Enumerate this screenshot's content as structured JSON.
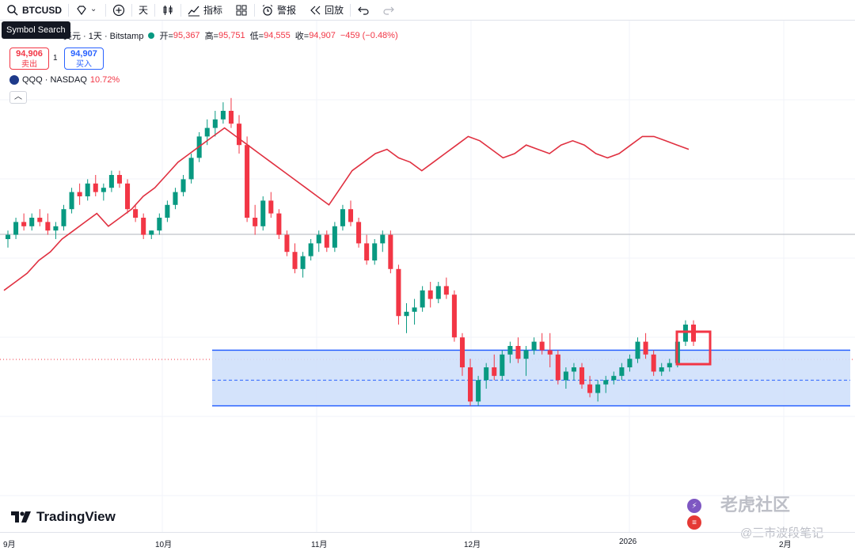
{
  "toolbar": {
    "symbol": "BTCUSD",
    "interval": "天",
    "indicators": "指标",
    "alert": "警报",
    "replay": "回放"
  },
  "tooltip": "Symbol Search",
  "legend": {
    "title": "美元 · 1天 · Bitstamp",
    "open_label": "开=",
    "open": "95,367",
    "high_label": "高=",
    "high": "95,751",
    "low_label": "低=",
    "low": "94,555",
    "close_label": "收=",
    "close": "94,907",
    "change": "−459 (−0.48%)"
  },
  "trade": {
    "sell_price": "94,906",
    "sell_label": "卖出",
    "spread": "1",
    "buy_price": "94,907",
    "buy_label": "买入"
  },
  "compare": {
    "symbol": "QQQ · NASDAQ",
    "value": "10.72%"
  },
  "xaxis": [
    "9月",
    "10月",
    "11月",
    "12月",
    "2026",
    "2月"
  ],
  "branding": {
    "logo": "TradingView",
    "watermark_main": "老虎社区",
    "watermark_sub": "@三市波段笔记"
  },
  "colors": {
    "up": "#089981",
    "down": "#f23645",
    "qqq_line": "#e03040",
    "range_fill": "#cfe0fb",
    "range_border": "#2962ff"
  },
  "chart_data": {
    "type": "candlestick",
    "note": "BTCUSD daily candles from Sept to late Jan; relative price units (0=low,100=high of visible range)",
    "candles": [
      [
        60,
        62,
        58,
        61
      ],
      [
        61,
        65,
        60,
        64
      ],
      [
        64,
        66,
        62,
        63
      ],
      [
        63,
        66,
        62,
        65
      ],
      [
        65,
        67,
        63,
        64
      ],
      [
        64,
        66,
        61,
        62
      ],
      [
        62,
        64,
        60,
        63
      ],
      [
        63,
        68,
        62,
        67
      ],
      [
        67,
        72,
        66,
        71
      ],
      [
        71,
        73,
        68,
        70
      ],
      [
        70,
        74,
        69,
        73
      ],
      [
        73,
        75,
        70,
        71
      ],
      [
        71,
        73,
        69,
        72
      ],
      [
        72,
        76,
        71,
        75
      ],
      [
        75,
        76,
        72,
        73
      ],
      [
        73,
        74,
        66,
        67
      ],
      [
        67,
        68,
        64,
        65
      ],
      [
        65,
        66,
        60,
        61
      ],
      [
        61,
        62,
        60,
        62
      ],
      [
        62,
        66,
        61,
        65
      ],
      [
        65,
        69,
        64,
        68
      ],
      [
        68,
        72,
        67,
        71
      ],
      [
        71,
        75,
        70,
        74
      ],
      [
        74,
        80,
        73,
        79
      ],
      [
        79,
        85,
        78,
        84
      ],
      [
        84,
        88,
        82,
        86
      ],
      [
        86,
        90,
        84,
        88
      ],
      [
        88,
        92,
        87,
        90
      ],
      [
        90,
        93,
        86,
        87
      ],
      [
        87,
        89,
        80,
        82
      ],
      [
        82,
        84,
        64,
        65
      ],
      [
        65,
        68,
        61,
        63
      ],
      [
        63,
        70,
        62,
        69
      ],
      [
        69,
        71,
        65,
        66
      ],
      [
        66,
        67,
        60,
        61
      ],
      [
        61,
        62,
        56,
        57
      ],
      [
        57,
        59,
        52,
        53
      ],
      [
        53,
        57,
        51,
        56
      ],
      [
        56,
        60,
        55,
        59
      ],
      [
        59,
        62,
        57,
        61
      ],
      [
        61,
        62,
        57,
        58
      ],
      [
        58,
        64,
        57,
        63
      ],
      [
        63,
        68,
        62,
        67
      ],
      [
        67,
        69,
        63,
        64
      ],
      [
        64,
        65,
        58,
        59
      ],
      [
        59,
        61,
        54,
        55
      ],
      [
        55,
        60,
        54,
        59
      ],
      [
        59,
        62,
        57,
        61
      ],
      [
        61,
        62,
        52,
        53
      ],
      [
        53,
        54,
        40,
        42
      ],
      [
        42,
        45,
        38,
        43
      ],
      [
        43,
        46,
        40,
        44
      ],
      [
        44,
        49,
        43,
        48
      ],
      [
        48,
        50,
        44,
        46
      ],
      [
        46,
        50,
        45,
        49
      ],
      [
        49,
        51,
        46,
        47
      ],
      [
        47,
        48,
        36,
        37
      ],
      [
        37,
        38,
        28,
        30
      ],
      [
        30,
        32,
        21,
        22
      ],
      [
        22,
        28,
        21,
        27
      ],
      [
        27,
        31,
        25,
        30
      ],
      [
        30,
        33,
        27,
        28
      ],
      [
        28,
        34,
        27,
        33
      ],
      [
        33,
        36,
        31,
        35
      ],
      [
        35,
        37,
        31,
        32
      ],
      [
        32,
        35,
        28,
        34
      ],
      [
        34,
        37,
        33,
        36
      ],
      [
        36,
        38,
        33,
        34
      ],
      [
        34,
        38,
        30,
        33
      ],
      [
        33,
        34,
        26,
        27
      ],
      [
        27,
        30,
        25,
        29
      ],
      [
        29,
        31,
        27,
        30
      ],
      [
        30,
        31,
        25,
        26
      ],
      [
        26,
        28,
        23,
        24
      ],
      [
        24,
        27,
        22,
        26
      ],
      [
        26,
        28,
        24,
        27
      ],
      [
        27,
        29,
        26,
        28
      ],
      [
        28,
        31,
        27,
        30
      ],
      [
        30,
        33,
        29,
        32
      ],
      [
        32,
        37,
        31,
        36
      ],
      [
        36,
        38,
        32,
        33
      ],
      [
        33,
        34,
        28,
        29
      ],
      [
        29,
        31,
        28,
        30
      ],
      [
        30,
        32,
        29,
        31
      ],
      [
        31,
        37,
        30,
        36
      ],
      [
        36,
        41,
        35,
        40
      ],
      [
        40,
        41,
        35,
        36
      ]
    ],
    "qqq_line_relative": [
      48,
      50,
      52,
      55,
      57,
      60,
      62,
      64,
      66,
      63,
      65,
      67,
      70,
      72,
      75,
      78,
      80,
      82,
      84,
      86,
      84,
      82,
      80,
      78,
      76,
      74,
      72,
      70,
      68,
      72,
      76,
      78,
      80,
      81,
      79,
      78,
      76,
      78,
      80,
      82,
      84,
      83,
      81,
      79,
      80,
      82,
      81,
      80,
      82,
      83,
      82,
      80,
      79,
      80,
      82,
      84,
      84,
      83,
      82,
      81
    ],
    "range_box": {
      "top_relative": 34,
      "mid_relative": 27,
      "bottom_relative": 21
    }
  }
}
